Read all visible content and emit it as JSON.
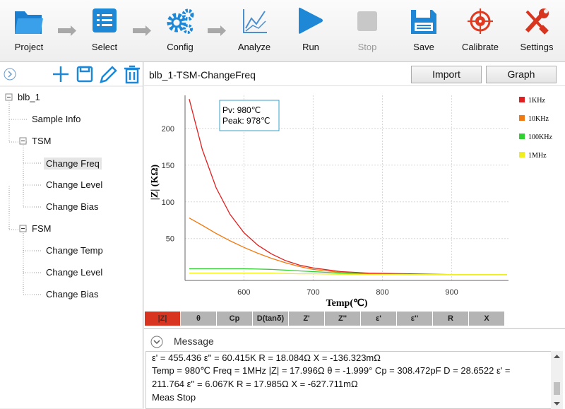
{
  "toolbar": {
    "items": [
      "Project",
      "Select",
      "Config",
      "Analyze",
      "Run",
      "Stop",
      "Save",
      "Calibrate",
      "Settings"
    ]
  },
  "sidebar": {
    "tree": {
      "label": "blb_1",
      "children": [
        {
          "label": "Sample Info"
        },
        {
          "label": "TSM",
          "children": [
            {
              "label": "Change Freq"
            },
            {
              "label": "Change Level"
            },
            {
              "label": "Change Bias"
            }
          ]
        },
        {
          "label": "FSM",
          "children": [
            {
              "label": "Change Temp"
            },
            {
              "label": "Change Level"
            },
            {
              "label": "Change Bias"
            }
          ]
        }
      ]
    }
  },
  "panel": {
    "title": "blb_1-TSM-ChangeFreq",
    "buttons": [
      "Import",
      "Graph"
    ]
  },
  "chart_data": {
    "type": "line",
    "x_label": "Temp(℃)",
    "y_label": "|Z| (KΩ)",
    "annotations": [
      "Pv: 980℃",
      "Peak: 978℃"
    ],
    "x": [
      521,
      540,
      560,
      580,
      600,
      620,
      640,
      660,
      680,
      700,
      740,
      780,
      840,
      900,
      980
    ],
    "series": [
      {
        "name": "1KHz",
        "color": "#e02020",
        "values": [
          240,
          171,
          119,
          83,
          58,
          41,
          29,
          20,
          14,
          10,
          5,
          3,
          2,
          1,
          1
        ]
      },
      {
        "name": "10KHz",
        "color": "#f07a10",
        "values": [
          78,
          68,
          57,
          47,
          38,
          30,
          23,
          17,
          12,
          8,
          4,
          2,
          1,
          1,
          1
        ]
      },
      {
        "name": "100KHz",
        "color": "#30d030",
        "values": [
          9,
          9,
          9,
          9,
          9,
          8.5,
          8,
          7,
          6,
          5,
          3,
          2,
          1,
          1,
          1
        ]
      },
      {
        "name": "1MHz",
        "color": "#eeee20",
        "values": [
          3,
          3,
          3,
          3,
          3,
          3,
          3,
          2.5,
          2,
          2,
          1.5,
          1,
          1,
          1,
          1
        ]
      }
    ],
    "xlim": [
      515,
      982
    ],
    "ylim": [
      -7,
      245
    ],
    "xticks": [
      600,
      700,
      800,
      900
    ],
    "yticks": [
      50,
      100,
      150,
      200
    ],
    "grid": true
  },
  "tabs": [
    "|Z|",
    "θ",
    "Cp",
    "D(tanδ)",
    "Z'",
    "Z''",
    "ε'",
    "ε''",
    "R",
    "X"
  ],
  "message": {
    "title": "Message",
    "lines": [
      "ε' = 455.436    ε'' = 60.415K    R = 18.084Ω    X = -136.323mΩ",
      "Temp = 980℃    Freq = 1MHz    |Z| = 17.996Ω    θ = -1.999°    Cp = 308.472pF    D = 28.6522    ε' =",
      "211.764    ε'' = 6.067K    R = 17.985Ω    X = -627.711mΩ",
      "Meas Stop"
    ]
  }
}
